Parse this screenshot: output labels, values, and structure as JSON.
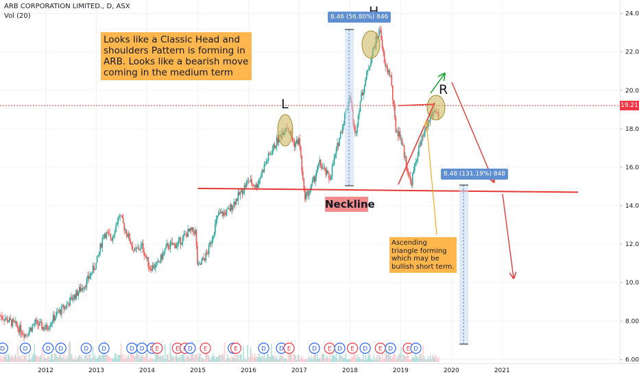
{
  "header": {
    "symbol": "ARB CORPORATION LIMITED., D, ASX",
    "indicator": "Vol (20)"
  },
  "annotations": {
    "main_note": "Looks like a Classic Head and shoulders Pattern is forming in ARB. Looks like a bearish move coming in the medium term",
    "triangle_note": "Ascending triangle forming which may be bullish short term.",
    "neckline": "Neckline",
    "left_shoulder": "L",
    "head": "H",
    "right_shoulder": "R",
    "measure_head": "8.46 (56.80%) 846",
    "measure_target": "8.48 (131.19%) 848",
    "last_price": "19.21"
  },
  "colors": {
    "up": "#26a69a",
    "down": "#ef5350",
    "accent_red": "#e53935",
    "note_bg": "#ffb74d",
    "neck_bg": "#f28b8b",
    "measure_bg": "#5f8fd0",
    "ellipse": "#c9b458",
    "green_arrow": "#22a83a",
    "dividend": "#2962ff",
    "earnings": "#f23645"
  },
  "chart_data": {
    "type": "candlestick",
    "title": "ARB CORPORATION LIMITED., D, ASX",
    "x_ticks": [
      "2012",
      "2013",
      "2014",
      "2015",
      "2016",
      "2017",
      "2018",
      "2019",
      "2020",
      "2021"
    ],
    "y_ticks": [
      "6.00",
      "8.00",
      "10.00",
      "12.00",
      "14.00",
      "16.00",
      "18.00",
      "20.00",
      "22.00",
      "24.00"
    ],
    "xlim": [
      2011.1,
      2023.7
    ],
    "ylim": [
      5.8,
      24.7
    ],
    "price_path": [
      [
        2011.1,
        8.3
      ],
      [
        2011.4,
        7.8
      ],
      [
        2011.6,
        7.3
      ],
      [
        2011.8,
        7.9
      ],
      [
        2012.0,
        7.6
      ],
      [
        2012.2,
        8.3
      ],
      [
        2012.4,
        8.8
      ],
      [
        2012.6,
        9.4
      ],
      [
        2012.8,
        10.0
      ],
      [
        2013.0,
        11.0
      ],
      [
        2013.15,
        12.6
      ],
      [
        2013.3,
        12.3
      ],
      [
        2013.45,
        13.5
      ],
      [
        2013.6,
        12.6
      ],
      [
        2013.75,
        11.6
      ],
      [
        2013.9,
        11.9
      ],
      [
        2014.05,
        10.8
      ],
      [
        2014.2,
        10.9
      ],
      [
        2014.4,
        11.9
      ],
      [
        2014.6,
        12.0
      ],
      [
        2014.8,
        12.6
      ],
      [
        2014.95,
        12.7
      ],
      [
        2015.0,
        10.7
      ],
      [
        2015.2,
        11.6
      ],
      [
        2015.4,
        13.5
      ],
      [
        2015.6,
        13.7
      ],
      [
        2015.8,
        14.5
      ],
      [
        2016.0,
        15.3
      ],
      [
        2016.15,
        15.0
      ],
      [
        2016.35,
        16.3
      ],
      [
        2016.55,
        17.3
      ],
      [
        2016.75,
        18.2
      ],
      [
        2016.9,
        17.2
      ],
      [
        2017.0,
        17.4
      ],
      [
        2017.1,
        14.5
      ],
      [
        2017.2,
        14.7
      ],
      [
        2017.4,
        16.2
      ],
      [
        2017.6,
        15.4
      ],
      [
        2017.8,
        17.6
      ],
      [
        2018.0,
        19.8
      ],
      [
        2018.1,
        17.6
      ],
      [
        2018.2,
        19.4
      ],
      [
        2018.35,
        21.0
      ],
      [
        2018.5,
        22.5
      ],
      [
        2018.6,
        23.2
      ],
      [
        2018.68,
        21.3
      ],
      [
        2018.8,
        20.8
      ],
      [
        2018.9,
        18.0
      ],
      [
        2019.0,
        17.6
      ],
      [
        2019.1,
        16.3
      ],
      [
        2019.2,
        15.1
      ],
      [
        2019.35,
        16.9
      ],
      [
        2019.5,
        18.0
      ],
      [
        2019.6,
        18.7
      ],
      [
        2019.7,
        19.0
      ],
      [
        2019.75,
        18.6
      ]
    ],
    "neckline": {
      "from": [
        2015.0,
        14.9
      ],
      "to": [
        2022.5,
        14.7
      ]
    },
    "horizontal_line_price": 19.21
  },
  "events": {
    "markers": [
      {
        "t": "D",
        "x": 2011.15
      },
      {
        "t": "D",
        "x": 2011.6
      },
      {
        "t": "D",
        "x": 2012.05
      },
      {
        "t": "D",
        "x": 2012.3
      },
      {
        "t": "D",
        "x": 2012.8
      },
      {
        "t": "D",
        "x": 2013.15
      },
      {
        "t": "D",
        "x": 2013.7
      },
      {
        "t": "D",
        "x": 2013.9
      },
      {
        "t": "D",
        "x": 2014.1
      },
      {
        "t": "E",
        "x": 2014.2
      },
      {
        "t": "E",
        "x": 2014.6
      },
      {
        "t": "E",
        "x": 2014.75
      },
      {
        "t": "D",
        "x": 2014.85
      },
      {
        "t": "E",
        "x": 2015.15
      },
      {
        "t": "D",
        "x": 2015.7
      },
      {
        "t": "E",
        "x": 2015.75
      },
      {
        "t": "D",
        "x": 2016.3
      },
      {
        "t": "D",
        "x": 2016.65
      },
      {
        "t": "E",
        "x": 2016.8
      },
      {
        "t": "D",
        "x": 2017.3
      },
      {
        "t": "E",
        "x": 2017.6
      },
      {
        "t": "D",
        "x": 2017.8
      },
      {
        "t": "E",
        "x": 2018.05
      },
      {
        "t": "D",
        "x": 2018.3
      },
      {
        "t": "E",
        "x": 2018.6
      },
      {
        "t": "D",
        "x": 2018.8
      },
      {
        "t": "E",
        "x": 2019.15
      },
      {
        "t": "D",
        "x": 2019.3
      }
    ]
  }
}
